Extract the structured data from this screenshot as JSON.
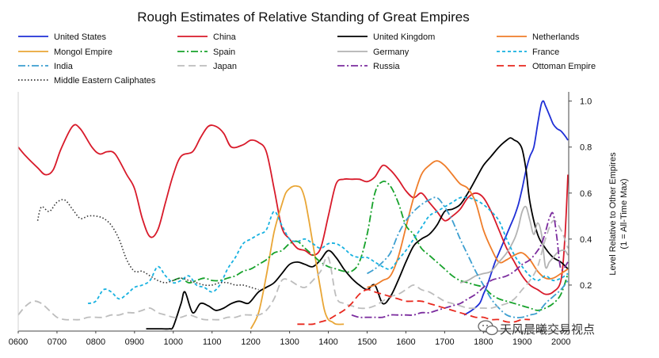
{
  "chart_data": {
    "type": "line",
    "title": "Rough Estimates of Relative Standing of Great Empires",
    "xlabel": "",
    "ylabel_line1": "Level Relative to Other Empires",
    "ylabel_line2": "(1 = All-Time Max)",
    "xlim": [
      600,
      2020
    ],
    "ylim": [
      0,
      1.04
    ],
    "y_axis_side": "right",
    "x_ticks": [
      "0600",
      "0700",
      "0800",
      "0900",
      "1000",
      "1100",
      "1200",
      "1300",
      "1400",
      "1500",
      "1600",
      "1700",
      "1800",
      "1900",
      "2000"
    ],
    "y_ticks": [
      "0.2",
      "0.4",
      "0.6",
      "0.8",
      "1.0"
    ],
    "legend_position": "top",
    "series": [
      {
        "name": "United States",
        "color": "#1f2fd6",
        "dash": "solid",
        "x": [
          1750,
          1770,
          1790,
          1800,
          1810,
          1820,
          1830,
          1840,
          1850,
          1860,
          1870,
          1880,
          1890,
          1900,
          1910,
          1920,
          1930,
          1940,
          1945,
          1950,
          1955,
          1960,
          1970,
          1980,
          1990,
          2000,
          2010,
          2018
        ],
        "y": [
          0.07,
          0.09,
          0.12,
          0.16,
          0.2,
          0.25,
          0.3,
          0.34,
          0.38,
          0.42,
          0.46,
          0.5,
          0.55,
          0.62,
          0.7,
          0.76,
          0.8,
          0.9,
          0.95,
          0.99,
          1.0,
          0.98,
          0.94,
          0.9,
          0.88,
          0.87,
          0.85,
          0.83
        ]
      },
      {
        "name": "China",
        "color": "#d81a2a",
        "dash": "solid",
        "x": [
          600,
          620,
          650,
          670,
          690,
          710,
          740,
          760,
          790,
          810,
          830,
          850,
          880,
          900,
          920,
          940,
          960,
          980,
          1000,
          1020,
          1050,
          1070,
          1090,
          1110,
          1130,
          1150,
          1180,
          1200,
          1220,
          1240,
          1260,
          1280,
          1300,
          1320,
          1340,
          1360,
          1380,
          1400,
          1420,
          1440,
          1460,
          1480,
          1500,
          1520,
          1540,
          1560,
          1580,
          1600,
          1620,
          1640,
          1660,
          1680,
          1700,
          1720,
          1740,
          1760,
          1780,
          1800,
          1820,
          1840,
          1860,
          1880,
          1900,
          1920,
          1940,
          1960,
          1980,
          2000,
          2010,
          2018
        ],
        "y": [
          0.8,
          0.76,
          0.71,
          0.68,
          0.7,
          0.79,
          0.89,
          0.88,
          0.8,
          0.77,
          0.78,
          0.77,
          0.68,
          0.62,
          0.49,
          0.41,
          0.44,
          0.56,
          0.68,
          0.76,
          0.78,
          0.84,
          0.89,
          0.89,
          0.86,
          0.8,
          0.81,
          0.83,
          0.82,
          0.78,
          0.62,
          0.45,
          0.4,
          0.36,
          0.35,
          0.33,
          0.36,
          0.5,
          0.64,
          0.66,
          0.66,
          0.66,
          0.65,
          0.67,
          0.72,
          0.7,
          0.66,
          0.61,
          0.58,
          0.6,
          0.56,
          0.52,
          0.48,
          0.5,
          0.53,
          0.58,
          0.6,
          0.58,
          0.52,
          0.44,
          0.36,
          0.3,
          0.24,
          0.2,
          0.18,
          0.16,
          0.17,
          0.22,
          0.4,
          0.68
        ]
      },
      {
        "name": "United Kingdom",
        "color": "#000000",
        "dash": "solid",
        "x": [
          930,
          950,
          970,
          990,
          1000,
          1020,
          1030,
          1050,
          1070,
          1090,
          1110,
          1130,
          1150,
          1170,
          1190,
          1200,
          1220,
          1240,
          1260,
          1280,
          1300,
          1320,
          1340,
          1360,
          1380,
          1400,
          1420,
          1440,
          1460,
          1480,
          1500,
          1520,
          1540,
          1560,
          1580,
          1600,
          1620,
          1640,
          1660,
          1680,
          1700,
          1720,
          1740,
          1760,
          1780,
          1800,
          1820,
          1840,
          1860,
          1870,
          1880,
          1890,
          1900,
          1910,
          1920,
          1940,
          1960,
          1980,
          2000,
          2018
        ],
        "y": [
          0.01,
          0.01,
          0.01,
          0.01,
          0.02,
          0.12,
          0.17,
          0.08,
          0.12,
          0.11,
          0.09,
          0.1,
          0.12,
          0.13,
          0.12,
          0.13,
          0.17,
          0.19,
          0.21,
          0.25,
          0.29,
          0.3,
          0.29,
          0.28,
          0.31,
          0.35,
          0.32,
          0.27,
          0.23,
          0.2,
          0.18,
          0.2,
          0.12,
          0.15,
          0.22,
          0.3,
          0.37,
          0.4,
          0.42,
          0.46,
          0.52,
          0.53,
          0.55,
          0.6,
          0.66,
          0.72,
          0.76,
          0.8,
          0.83,
          0.84,
          0.83,
          0.82,
          0.79,
          0.7,
          0.56,
          0.42,
          0.36,
          0.32,
          0.3,
          0.27
        ]
      },
      {
        "name": "Netherlands",
        "color": "#ef7d2a",
        "dash": "solid",
        "x": [
          1500,
          1520,
          1540,
          1560,
          1580,
          1600,
          1620,
          1640,
          1660,
          1680,
          1700,
          1720,
          1740,
          1760,
          1780,
          1800,
          1820,
          1840,
          1860,
          1880,
          1900,
          1920,
          1940,
          1960,
          1980,
          2000,
          2018
        ],
        "y": [
          0.19,
          0.2,
          0.22,
          0.24,
          0.32,
          0.45,
          0.58,
          0.68,
          0.72,
          0.74,
          0.72,
          0.68,
          0.64,
          0.62,
          0.56,
          0.44,
          0.36,
          0.3,
          0.31,
          0.33,
          0.34,
          0.31,
          0.26,
          0.23,
          0.23,
          0.25,
          0.27
        ]
      },
      {
        "name": "Mongol Empire",
        "color": "#e9a636",
        "dash": "solid",
        "x": [
          1200,
          1220,
          1240,
          1260,
          1280,
          1290,
          1300,
          1310,
          1320,
          1330,
          1340,
          1350,
          1360,
          1370,
          1380,
          1390,
          1400,
          1410,
          1420,
          1440
        ],
        "y": [
          0.01,
          0.08,
          0.24,
          0.43,
          0.55,
          0.6,
          0.62,
          0.63,
          0.63,
          0.62,
          0.57,
          0.48,
          0.38,
          0.28,
          0.18,
          0.09,
          0.05,
          0.04,
          0.03,
          0.03
        ]
      },
      {
        "name": "Spain",
        "color": "#17a22b",
        "dash": "dashdot",
        "x": [
          1000,
          1020,
          1040,
          1060,
          1080,
          1100,
          1120,
          1140,
          1160,
          1180,
          1200,
          1220,
          1240,
          1260,
          1280,
          1300,
          1320,
          1340,
          1360,
          1380,
          1400,
          1420,
          1440,
          1460,
          1480,
          1500,
          1520,
          1540,
          1560,
          1580,
          1600,
          1620,
          1640,
          1660,
          1680,
          1700,
          1720,
          1740,
          1760,
          1780,
          1800,
          1820,
          1840,
          1860,
          1880,
          1900,
          1920,
          1940,
          1960,
          1980,
          2000,
          2018
        ],
        "y": [
          0.22,
          0.23,
          0.21,
          0.22,
          0.23,
          0.22,
          0.22,
          0.23,
          0.24,
          0.26,
          0.27,
          0.29,
          0.31,
          0.34,
          0.35,
          0.38,
          0.39,
          0.36,
          0.33,
          0.3,
          0.28,
          0.27,
          0.26,
          0.26,
          0.3,
          0.42,
          0.6,
          0.65,
          0.63,
          0.56,
          0.46,
          0.42,
          0.36,
          0.33,
          0.3,
          0.27,
          0.24,
          0.22,
          0.21,
          0.2,
          0.19,
          0.16,
          0.14,
          0.13,
          0.12,
          0.11,
          0.1,
          0.09,
          0.1,
          0.12,
          0.16,
          0.25
        ]
      },
      {
        "name": "Germany",
        "color": "#b3b3b3",
        "dash": "solid",
        "x": [
          1740,
          1760,
          1780,
          1800,
          1820,
          1840,
          1860,
          1880,
          1890,
          1900,
          1910,
          1920,
          1930,
          1940,
          1950,
          1960,
          1970,
          1980,
          1990,
          2000,
          2010,
          2018
        ],
        "y": [
          0.21,
          0.22,
          0.24,
          0.25,
          0.26,
          0.3,
          0.34,
          0.4,
          0.45,
          0.52,
          0.54,
          0.48,
          0.42,
          0.47,
          0.42,
          0.28,
          0.3,
          0.32,
          0.34,
          0.35,
          0.35,
          0.33
        ]
      },
      {
        "name": "France",
        "color": "#16b1e0",
        "dash": "dash",
        "x": [
          780,
          800,
          820,
          840,
          860,
          880,
          900,
          920,
          940,
          960,
          980,
          1000,
          1020,
          1040,
          1060,
          1080,
          1100,
          1120,
          1140,
          1160,
          1180,
          1200,
          1220,
          1240,
          1260,
          1280,
          1300,
          1320,
          1340,
          1360,
          1380,
          1400,
          1420,
          1440,
          1460,
          1480,
          1500,
          1520,
          1540,
          1560,
          1580,
          1600,
          1620,
          1640,
          1660,
          1680,
          1700,
          1720,
          1740,
          1760,
          1780,
          1800,
          1820,
          1840,
          1860,
          1880,
          1900,
          1920,
          1940,
          1960,
          1980,
          2000,
          2018
        ],
        "y": [
          0.12,
          0.13,
          0.18,
          0.17,
          0.14,
          0.16,
          0.19,
          0.2,
          0.22,
          0.28,
          0.24,
          0.21,
          0.22,
          0.24,
          0.2,
          0.19,
          0.17,
          0.2,
          0.27,
          0.32,
          0.38,
          0.4,
          0.42,
          0.44,
          0.52,
          0.46,
          0.4,
          0.39,
          0.4,
          0.38,
          0.36,
          0.38,
          0.38,
          0.36,
          0.33,
          0.32,
          0.32,
          0.3,
          0.28,
          0.27,
          0.31,
          0.35,
          0.4,
          0.45,
          0.5,
          0.52,
          0.54,
          0.56,
          0.58,
          0.58,
          0.57,
          0.55,
          0.52,
          0.48,
          0.4,
          0.33,
          0.28,
          0.24,
          0.22,
          0.24,
          0.22,
          0.23,
          0.25
        ]
      },
      {
        "name": "India",
        "color": "#3d9fd0",
        "dash": "dashdot",
        "x": [
          1500,
          1520,
          1540,
          1560,
          1580,
          1600,
          1620,
          1640,
          1660,
          1680,
          1700,
          1720,
          1740,
          1760,
          1780,
          1800,
          1820,
          1840,
          1860,
          1880,
          1900,
          1920,
          1940,
          1960,
          1980,
          2000,
          2018
        ],
        "y": [
          0.25,
          0.27,
          0.3,
          0.34,
          0.42,
          0.48,
          0.52,
          0.55,
          0.57,
          0.58,
          0.54,
          0.48,
          0.4,
          0.33,
          0.26,
          0.2,
          0.14,
          0.1,
          0.07,
          0.06,
          0.06,
          0.07,
          0.08,
          0.12,
          0.15,
          0.18,
          0.22
        ]
      },
      {
        "name": "Japan",
        "color": "#bdbdbd",
        "dash": "longdash",
        "x": [
          600,
          620,
          640,
          660,
          680,
          700,
          720,
          740,
          760,
          780,
          800,
          820,
          840,
          860,
          880,
          900,
          920,
          940,
          960,
          980,
          1000,
          1020,
          1040,
          1060,
          1080,
          1100,
          1120,
          1140,
          1160,
          1180,
          1200,
          1220,
          1240,
          1260,
          1280,
          1300,
          1320,
          1340,
          1360,
          1380,
          1400,
          1420,
          1440,
          1460,
          1480,
          1500,
          1520,
          1540,
          1560,
          1580,
          1600,
          1620,
          1640,
          1660,
          1680,
          1700,
          1720,
          1740,
          1760,
          1780,
          1800,
          1820,
          1840,
          1860,
          1880,
          1900,
          1920,
          1940,
          1960,
          1980,
          2000,
          2018
        ],
        "y": [
          0.07,
          0.11,
          0.13,
          0.12,
          0.09,
          0.06,
          0.05,
          0.05,
          0.05,
          0.06,
          0.06,
          0.06,
          0.07,
          0.07,
          0.08,
          0.08,
          0.09,
          0.1,
          0.08,
          0.07,
          0.06,
          0.06,
          0.07,
          0.06,
          0.05,
          0.05,
          0.05,
          0.06,
          0.06,
          0.07,
          0.07,
          0.07,
          0.09,
          0.14,
          0.22,
          0.22,
          0.2,
          0.19,
          0.22,
          0.26,
          0.32,
          0.15,
          0.12,
          0.11,
          0.1,
          0.1,
          0.11,
          0.13,
          0.15,
          0.16,
          0.18,
          0.2,
          0.18,
          0.17,
          0.15,
          0.13,
          0.12,
          0.11,
          0.1,
          0.1,
          0.1,
          0.1,
          0.11,
          0.12,
          0.14,
          0.18,
          0.22,
          0.28,
          0.4,
          0.48,
          0.44,
          0.36
        ]
      },
      {
        "name": "Russia",
        "color": "#7b2c9e",
        "dash": "dashdot",
        "x": [
          1460,
          1480,
          1500,
          1520,
          1540,
          1560,
          1580,
          1600,
          1620,
          1640,
          1660,
          1680,
          1700,
          1720,
          1740,
          1760,
          1780,
          1800,
          1820,
          1840,
          1860,
          1880,
          1900,
          1920,
          1940,
          1950,
          1960,
          1970,
          1980,
          1990,
          2000,
          2018
        ],
        "y": [
          0.07,
          0.06,
          0.06,
          0.06,
          0.06,
          0.07,
          0.07,
          0.07,
          0.07,
          0.08,
          0.08,
          0.09,
          0.1,
          0.11,
          0.12,
          0.14,
          0.16,
          0.19,
          0.22,
          0.23,
          0.24,
          0.26,
          0.29,
          0.31,
          0.35,
          0.38,
          0.43,
          0.49,
          0.51,
          0.4,
          0.27,
          0.3
        ]
      },
      {
        "name": "Ottoman Empire",
        "color": "#e8281e",
        "dash": "longdash",
        "x": [
          1320,
          1340,
          1360,
          1380,
          1400,
          1420,
          1440,
          1460,
          1480,
          1500,
          1520,
          1540,
          1560,
          1580,
          1600,
          1620,
          1640,
          1660,
          1680,
          1700,
          1720,
          1740,
          1760,
          1780,
          1800,
          1820,
          1840,
          1860,
          1880,
          1900,
          1920
        ],
        "y": [
          0.03,
          0.03,
          0.03,
          0.04,
          0.05,
          0.07,
          0.09,
          0.12,
          0.16,
          0.18,
          0.17,
          0.16,
          0.15,
          0.14,
          0.13,
          0.13,
          0.13,
          0.12,
          0.11,
          0.1,
          0.09,
          0.08,
          0.07,
          0.06,
          0.06,
          0.05,
          0.05,
          0.04,
          0.04,
          0.05,
          0.05
        ]
      },
      {
        "name": "Middle Eastern Caliphates",
        "color": "#333333",
        "dash": "dot",
        "x": [
          650,
          660,
          680,
          700,
          720,
          740,
          760,
          780,
          800,
          820,
          840,
          860,
          880,
          900,
          920,
          940,
          960,
          980,
          1000,
          1020,
          1040,
          1060,
          1080,
          1100,
          1120,
          1140,
          1160,
          1180,
          1200,
          1220
        ],
        "y": [
          0.48,
          0.54,
          0.52,
          0.56,
          0.57,
          0.53,
          0.49,
          0.5,
          0.5,
          0.49,
          0.46,
          0.4,
          0.31,
          0.26,
          0.26,
          0.24,
          0.22,
          0.21,
          0.22,
          0.23,
          0.22,
          0.21,
          0.2,
          0.2,
          0.21,
          0.21,
          0.2,
          0.2,
          0.19,
          0.18
        ]
      }
    ]
  },
  "watermark": {
    "text": "天风晨曦交易视点",
    "icon": "wechat-bubble-icon"
  }
}
